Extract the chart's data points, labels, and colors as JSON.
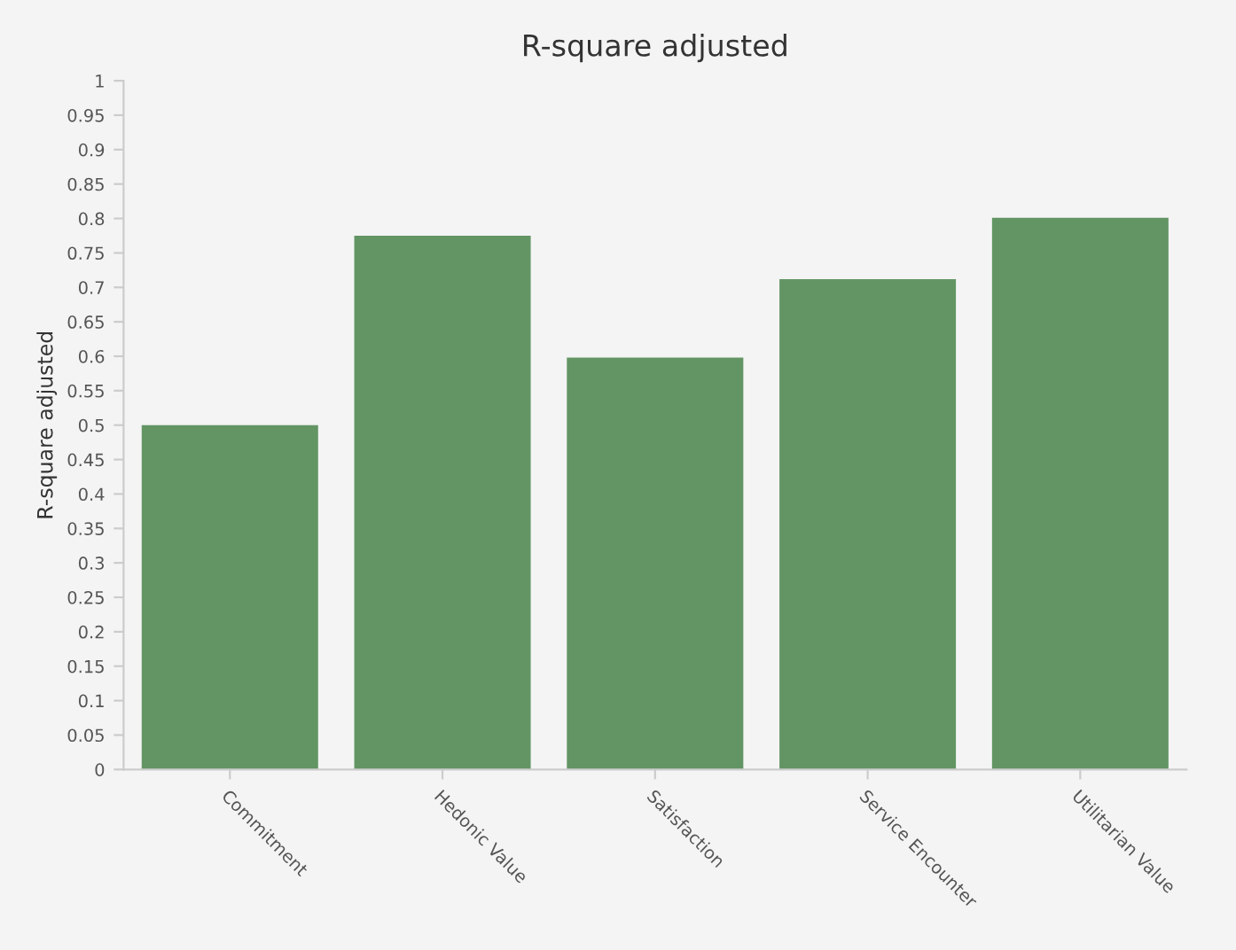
{
  "chart_data": {
    "type": "bar",
    "title": "R-square adjusted",
    "ylabel": "R-square adjusted",
    "categories": [
      "Commitment",
      "Hedonic Value",
      "Satisfaction",
      "Service Encounter",
      "Utilitarian Value"
    ],
    "values": [
      0.5,
      0.775,
      0.598,
      0.712,
      0.801
    ],
    "color": "#629563",
    "ylim": [
      0,
      1
    ],
    "yticks": [
      0,
      0.05,
      0.1,
      0.15,
      0.2,
      0.25,
      0.3,
      0.35,
      0.4,
      0.45,
      0.5,
      0.55,
      0.6,
      0.65,
      0.7,
      0.75,
      0.8,
      0.85,
      0.9,
      0.95,
      1
    ],
    "grid": false,
    "legend": false
  }
}
